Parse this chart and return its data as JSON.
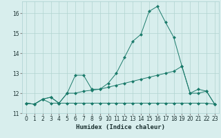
{
  "xlabel": "Humidex (Indice chaleur)",
  "bg_color": "#d8eeed",
  "grid_color": "#b0d4d0",
  "line_color": "#1a7a6a",
  "xlim": [
    -0.5,
    23.5
  ],
  "ylim": [
    11.0,
    16.6
  ],
  "yticks": [
    11,
    12,
    13,
    14,
    15,
    16
  ],
  "xticks": [
    0,
    1,
    2,
    3,
    4,
    5,
    6,
    7,
    8,
    9,
    10,
    11,
    12,
    13,
    14,
    15,
    16,
    17,
    18,
    19,
    20,
    21,
    22,
    23
  ],
  "line1_x": [
    0,
    1,
    2,
    3,
    4,
    5,
    6,
    7,
    8,
    9,
    10,
    11,
    12,
    13,
    14,
    15,
    16,
    17,
    18,
    19,
    20,
    21,
    22,
    23
  ],
  "line1_y": [
    11.5,
    11.45,
    11.7,
    11.5,
    11.5,
    11.5,
    11.5,
    11.5,
    11.5,
    11.5,
    11.5,
    11.5,
    11.5,
    11.5,
    11.5,
    11.5,
    11.5,
    11.5,
    11.5,
    11.5,
    11.5,
    11.5,
    11.5,
    11.45
  ],
  "line2_x": [
    0,
    1,
    2,
    3,
    4,
    5,
    6,
    7,
    8,
    9,
    10,
    11,
    12,
    13,
    14,
    15,
    16,
    17,
    18,
    19,
    20,
    21,
    22,
    23
  ],
  "line2_y": [
    11.5,
    11.45,
    11.7,
    11.8,
    11.5,
    12.0,
    12.0,
    12.1,
    12.15,
    12.2,
    12.3,
    12.4,
    12.5,
    12.6,
    12.7,
    12.8,
    12.9,
    13.0,
    13.1,
    13.35,
    12.0,
    12.0,
    12.1,
    11.45
  ],
  "line3_x": [
    0,
    1,
    2,
    3,
    4,
    5,
    6,
    7,
    8,
    9,
    10,
    11,
    12,
    13,
    14,
    15,
    16,
    17,
    18,
    19,
    20,
    21,
    22,
    23
  ],
  "line3_y": [
    11.5,
    11.45,
    11.7,
    11.8,
    11.5,
    12.0,
    12.9,
    12.9,
    12.2,
    12.2,
    12.5,
    13.0,
    13.8,
    14.6,
    14.95,
    16.1,
    16.35,
    15.55,
    14.8,
    13.35,
    12.0,
    12.2,
    12.1,
    11.45
  ],
  "markersize": 2.5
}
